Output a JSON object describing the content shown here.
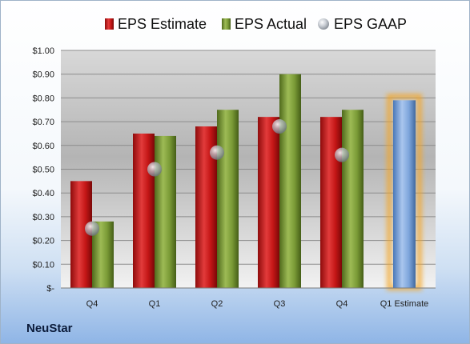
{
  "company": "NeuStar",
  "colors": {
    "estimate": "#d01f1f",
    "actual": "#7a9a36",
    "gaap": "#b8bec8",
    "future_estimate": "#7ea6dc",
    "highlight": "#f5a623"
  },
  "chart_data": {
    "type": "bar",
    "title": "",
    "xlabel": "",
    "ylabel": "",
    "ylim": [
      0,
      1.0
    ],
    "yticks": [
      0,
      0.1,
      0.2,
      0.3,
      0.4,
      0.5,
      0.6,
      0.7,
      0.8,
      0.9,
      1.0
    ],
    "ytick_labels": [
      "$-",
      "$0.10",
      "$0.20",
      "$0.30",
      "$0.40",
      "$0.50",
      "$0.60",
      "$0.70",
      "$0.80",
      "$0.90",
      "$1.00"
    ],
    "categories": [
      "Q4",
      "Q1",
      "Q2",
      "Q3",
      "Q4",
      "Q1 Estimate"
    ],
    "legend_position": "top",
    "grid": true,
    "series": [
      {
        "name": "EPS Estimate",
        "kind": "bar",
        "values": [
          0.45,
          0.65,
          0.68,
          0.72,
          0.72,
          null
        ]
      },
      {
        "name": "EPS Actual",
        "kind": "bar",
        "values": [
          0.28,
          0.64,
          0.75,
          0.9,
          0.75,
          null
        ]
      },
      {
        "name": "EPS GAAP",
        "kind": "marker",
        "values": [
          0.25,
          0.5,
          0.57,
          0.68,
          0.56,
          null
        ]
      }
    ],
    "future_estimate": {
      "category": "Q1 Estimate",
      "value": 0.79,
      "highlighted": true
    }
  }
}
